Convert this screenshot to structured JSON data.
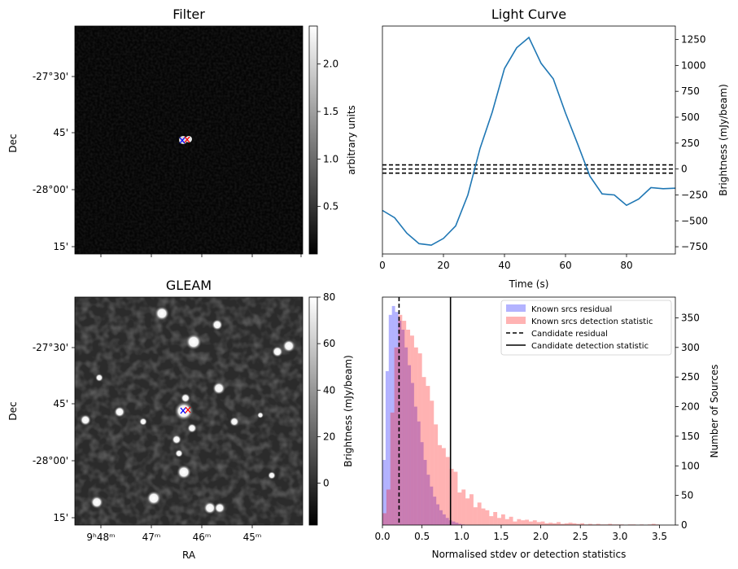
{
  "chart_data": [
    {
      "id": "filter",
      "type": "heatmap",
      "title": "Filter",
      "xlabel": "",
      "ylabel": "Dec",
      "yticks": [
        "-27°30'",
        "45'",
        "-28°00'",
        "15'"
      ],
      "colorbar": {
        "label": "arbitrary units",
        "range": [
          0.0,
          2.4
        ],
        "ticks": [
          0.5,
          1.0,
          1.5,
          2.0
        ],
        "tick_labels": [
          "0.5",
          "1.0",
          "1.5",
          "2.0"
        ],
        "colormap": "gray"
      },
      "markers": [
        {
          "symbol": "x",
          "color": "#0000ff"
        },
        {
          "symbol": "x",
          "color": "#ff0000"
        }
      ]
    },
    {
      "id": "light_curve",
      "type": "line",
      "title": "Light Curve",
      "xlabel": "Time (s)",
      "ylabel": "Brightness (mJy/beam)",
      "xlim": [
        0,
        96
      ],
      "ylim": [
        -820,
        1380
      ],
      "xticks": [
        0,
        20,
        40,
        60,
        80
      ],
      "yticks": [
        -750,
        -500,
        -250,
        0,
        250,
        500,
        750,
        1000,
        1250
      ],
      "series": [
        {
          "color": "#1f77b4",
          "x": [
            0,
            4,
            8,
            12,
            16,
            20,
            24,
            28,
            32,
            36,
            40,
            44,
            48,
            52,
            56,
            60,
            64,
            68,
            72,
            76,
            80,
            84,
            88,
            92,
            96
          ],
          "y": [
            -400,
            -470,
            -620,
            -720,
            -735,
            -670,
            -550,
            -250,
            200,
            550,
            970,
            1170,
            1270,
            1020,
            870,
            540,
            240,
            -70,
            -240,
            -250,
            -350,
            -290,
            -180,
            -190,
            -185
          ]
        }
      ],
      "hlines": [
        40,
        0,
        -40
      ]
    },
    {
      "id": "gleam",
      "type": "heatmap",
      "title": "GLEAM",
      "xlabel": "RA",
      "ylabel": "Dec",
      "xticks": [
        "9ʰ48ᵐ",
        "47ᵐ",
        "46ᵐ",
        "45ᵐ"
      ],
      "yticks": [
        "-27°30'",
        "45'",
        "-28°00'",
        "15'"
      ],
      "colorbar": {
        "label": "Brightness (mJy/beam)",
        "range": [
          -18,
          80
        ],
        "ticks": [
          0,
          20,
          40,
          60,
          80
        ],
        "tick_labels": [
          "0",
          "20",
          "40",
          "60",
          "80"
        ],
        "colormap": "gray"
      },
      "markers": [
        {
          "symbol": "x",
          "color": "#0000ff"
        },
        {
          "symbol": "x",
          "color": "#ff0000"
        }
      ]
    },
    {
      "id": "histogram",
      "type": "bar",
      "xlabel": "Normalised stdev or detection statistics",
      "ylabel": "Number of Sources",
      "xlim": [
        0,
        3.7
      ],
      "ylim": [
        0,
        385
      ],
      "xticks": [
        0.0,
        0.5,
        1.0,
        1.5,
        2.0,
        2.5,
        3.0,
        3.5
      ],
      "xtick_labels": [
        "0.0",
        "0.5",
        "1.0",
        "1.5",
        "2.0",
        "2.5",
        "3.0",
        "3.5"
      ],
      "yticks": [
        0,
        50,
        100,
        150,
        200,
        250,
        300,
        350
      ],
      "legend": {
        "placement": "top-right",
        "entries": [
          {
            "label": "Known srcs residual",
            "kind": "patch",
            "color": "#b3b3ff"
          },
          {
            "label": "Known srcs detection statistic",
            "kind": "patch",
            "color": "#ffb3b3"
          },
          {
            "label": "Candidate residual",
            "kind": "dashed"
          },
          {
            "label": "Candidate detection statistic",
            "kind": "solid"
          }
        ]
      },
      "series": [
        {
          "name": "Known srcs residual",
          "color": "#0000ff",
          "bins": [
            0.0,
            0.04,
            0.08,
            0.12,
            0.16,
            0.2,
            0.24,
            0.28,
            0.32,
            0.36,
            0.4,
            0.44,
            0.48,
            0.52,
            0.56,
            0.6,
            0.64,
            0.68,
            0.72,
            0.76,
            0.8,
            0.84,
            0.88,
            0.92,
            0.96,
            1.0
          ],
          "values": [
            110,
            260,
            355,
            370,
            360,
            345,
            330,
            300,
            270,
            240,
            200,
            175,
            140,
            110,
            85,
            65,
            48,
            35,
            25,
            18,
            12,
            8,
            6,
            4,
            2,
            1
          ]
        },
        {
          "name": "Known srcs detection statistic",
          "color": "#ff0000",
          "bins": [
            0.0,
            0.05,
            0.1,
            0.15,
            0.2,
            0.25,
            0.3,
            0.35,
            0.4,
            0.45,
            0.5,
            0.55,
            0.6,
            0.65,
            0.7,
            0.75,
            0.8,
            0.85,
            0.9,
            0.95,
            1.0,
            1.05,
            1.1,
            1.15,
            1.2,
            1.25,
            1.3,
            1.35,
            1.4,
            1.45,
            1.5,
            1.55,
            1.6,
            1.65,
            1.7,
            1.75,
            1.8,
            1.85,
            1.9,
            1.95,
            2.0,
            2.05,
            2.1,
            2.15,
            2.2,
            2.25,
            2.3,
            2.35,
            2.4,
            2.45,
            2.5,
            2.55,
            2.6,
            2.65,
            2.7,
            2.75,
            2.8,
            2.85,
            2.9,
            2.95,
            3.0,
            3.05,
            3.1,
            3.15,
            3.2,
            3.25,
            3.3,
            3.35,
            3.4,
            3.45,
            3.5
          ],
          "values": [
            20,
            60,
            190,
            300,
            355,
            345,
            330,
            320,
            300,
            290,
            250,
            235,
            210,
            170,
            135,
            130,
            115,
            95,
            90,
            55,
            60,
            45,
            52,
            30,
            38,
            28,
            25,
            15,
            22,
            12,
            18,
            10,
            14,
            6,
            10,
            8,
            9,
            6,
            8,
            5,
            6,
            3,
            4,
            3,
            5,
            2,
            3,
            4,
            3,
            2,
            3,
            1,
            2,
            1,
            2,
            1,
            1,
            2,
            1,
            1,
            1,
            0,
            1,
            1,
            0,
            1,
            0,
            1,
            2,
            1,
            0
          ]
        }
      ],
      "vlines": [
        {
          "name": "Candidate residual",
          "x": 0.21,
          "style": "dashed"
        },
        {
          "name": "Candidate detection statistic",
          "x": 0.86,
          "style": "solid"
        }
      ]
    }
  ]
}
